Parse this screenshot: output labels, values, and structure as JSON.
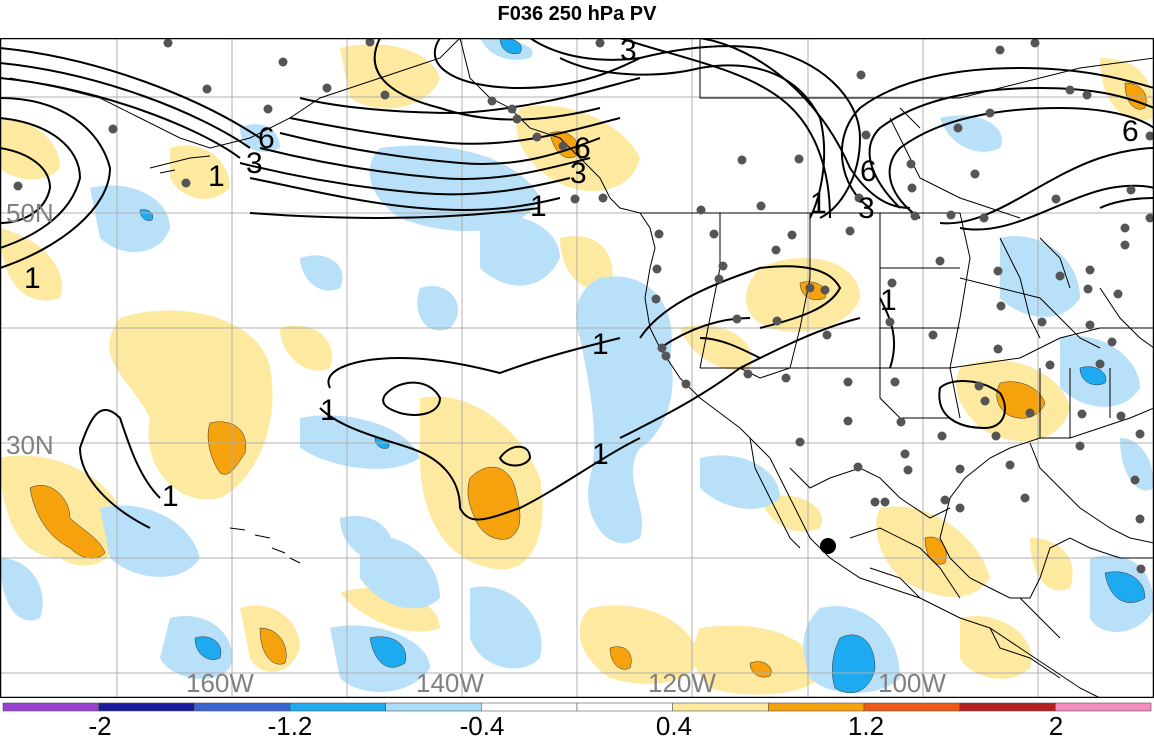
{
  "title": "F036 250 hPa PV",
  "lat_labels": [
    "50N",
    "30N"
  ],
  "lon_labels": [
    "160W",
    "140W",
    "120W",
    "100W"
  ],
  "contour_labels": {
    "one": "1",
    "three": "3",
    "six": "6"
  },
  "colorbar": {
    "tick_labels": [
      "-2",
      "-1.2",
      "-0.4",
      "0.4",
      "1.2",
      "2"
    ],
    "colors": [
      "#9b3fd0",
      "#1a1aa0",
      "#3b64d4",
      "#1eaaf0",
      "#a8dcf8",
      "#ffffff",
      "#ffffff",
      "#fde9a0",
      "#f5a20c",
      "#f05a18",
      "#b02020",
      "#f58cc0"
    ]
  },
  "colors": {
    "positive_light": "#fde9a0",
    "positive_mid": "#f5a20c",
    "negative_light": "#b8e0f8",
    "negative_mid": "#1eaaf0",
    "station_dot": "#555555",
    "grid": "#b0b0b0"
  }
}
